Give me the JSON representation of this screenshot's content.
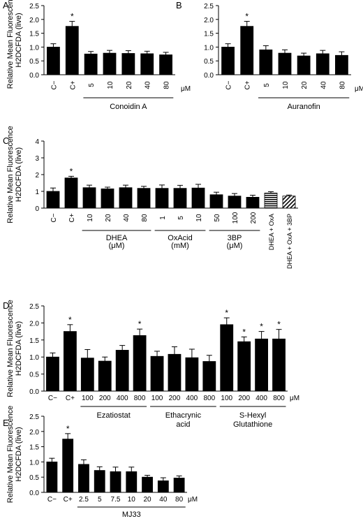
{
  "chart_data": [
    {
      "panel": "A",
      "type": "bar",
      "ylabel": [
        "Relative Mean Fluorescence",
        "H2DCFDA (live)"
      ],
      "ylim": [
        0,
        2.5
      ],
      "yticks": [
        "0.0",
        "0.5",
        "1.0",
        "1.5",
        "2.0",
        "2.5"
      ],
      "categories": [
        "C−",
        "C+",
        "5",
        "10",
        "20",
        "40",
        "80"
      ],
      "values": [
        1.0,
        1.75,
        0.75,
        0.78,
        0.77,
        0.76,
        0.72
      ],
      "errors": [
        0.12,
        0.18,
        0.09,
        0.1,
        0.1,
        0.09,
        0.09
      ],
      "significant": [
        false,
        true,
        false,
        false,
        false,
        false,
        false
      ],
      "unit": "μM",
      "groups": [
        {
          "label": "Conoidin A",
          "from": 2,
          "to": 6
        }
      ]
    },
    {
      "panel": "B",
      "type": "bar",
      "ylim": [
        0,
        2.5
      ],
      "yticks": [
        "0.0",
        "0.5",
        "1.0",
        "1.5",
        "2.0",
        "2.5"
      ],
      "categories": [
        "C−",
        "C+",
        "5",
        "10",
        "20",
        "40",
        "80"
      ],
      "values": [
        1.0,
        1.75,
        0.9,
        0.78,
        0.68,
        0.76,
        0.7
      ],
      "errors": [
        0.12,
        0.18,
        0.15,
        0.12,
        0.1,
        0.12,
        0.13
      ],
      "significant": [
        false,
        true,
        false,
        false,
        false,
        false,
        false
      ],
      "unit": "μM",
      "groups": [
        {
          "label": "Auranofin",
          "from": 2,
          "to": 6
        }
      ]
    },
    {
      "panel": "C",
      "type": "bar",
      "ylabel": [
        "Relative Mean Fluorescence",
        "H2DCFDA (live)"
      ],
      "ylim": [
        0,
        4
      ],
      "yticks": [
        "0",
        "1",
        "2",
        "3",
        "4"
      ],
      "categories": [
        "C−",
        "C+",
        "10",
        "20",
        "40",
        "80",
        "1",
        "5",
        "10",
        "50",
        "100",
        "200",
        "DHEA + OxA",
        "DHEA + OxA + 3BP"
      ],
      "values": [
        1.0,
        1.8,
        1.22,
        1.15,
        1.22,
        1.18,
        1.18,
        1.18,
        1.2,
        0.8,
        0.72,
        0.65,
        0.9,
        0.72
      ],
      "errors": [
        0.2,
        0.1,
        0.15,
        0.1,
        0.15,
        0.12,
        0.2,
        0.18,
        0.22,
        0.15,
        0.15,
        0.12,
        0.08,
        0.06
      ],
      "significant": [
        false,
        true,
        false,
        false,
        false,
        false,
        false,
        false,
        false,
        false,
        false,
        false,
        false,
        false
      ],
      "patterns": [
        "solid",
        "solid",
        "solid",
        "solid",
        "solid",
        "solid",
        "solid",
        "solid",
        "solid",
        "solid",
        "solid",
        "solid",
        "horizontal-stripes",
        "diagonal-hatch"
      ],
      "groups": [
        {
          "label": "DHEA",
          "sub": "(μM)",
          "from": 2,
          "to": 5
        },
        {
          "label": "OxAcid",
          "sub": "(mM)",
          "from": 6,
          "to": 8
        },
        {
          "label": "3BP",
          "sub": "(μM)",
          "from": 9,
          "to": 11
        }
      ]
    },
    {
      "panel": "D",
      "type": "bar",
      "ylabel": [
        "Relative Mean Fluorescence",
        "H2DCFDA (live)"
      ],
      "ylim": [
        0,
        2.5
      ],
      "yticks": [
        "0.0",
        "0.5",
        "1.0",
        "1.5",
        "2.0",
        "2.5"
      ],
      "categories": [
        "C−",
        "C+",
        "100",
        "200",
        "400",
        "800",
        "100",
        "200",
        "400",
        "800",
        "100",
        "200",
        "400",
        "800"
      ],
      "values": [
        1.0,
        1.75,
        0.97,
        0.88,
        1.2,
        1.63,
        1.02,
        1.08,
        0.98,
        0.87,
        1.95,
        1.45,
        1.53,
        1.53
      ],
      "errors": [
        0.12,
        0.2,
        0.25,
        0.12,
        0.14,
        0.19,
        0.15,
        0.22,
        0.25,
        0.18,
        0.2,
        0.14,
        0.22,
        0.28
      ],
      "significant": [
        false,
        true,
        false,
        false,
        false,
        true,
        false,
        false,
        false,
        false,
        true,
        true,
        true,
        true
      ],
      "unit": "μM",
      "groups": [
        {
          "label": "Ezatiostat",
          "from": 2,
          "to": 5
        },
        {
          "label": "Ethacrynic",
          "sub": "acid",
          "from": 6,
          "to": 9
        },
        {
          "label": "S-Hexyl",
          "sub": "Glutathione",
          "from": 10,
          "to": 13
        }
      ]
    },
    {
      "panel": "E",
      "type": "bar",
      "ylabel": [
        "Relative Mean Fluorescence",
        "H2DCFDA (live)"
      ],
      "ylim": [
        0,
        2.5
      ],
      "yticks": [
        "0.0",
        "0.5",
        "1.0",
        "1.5",
        "2.0",
        "2.5"
      ],
      "categories": [
        "C−",
        "C+",
        "2.5",
        "5",
        "7.5",
        "10",
        "20",
        "40",
        "80"
      ],
      "values": [
        1.0,
        1.75,
        0.92,
        0.72,
        0.68,
        0.68,
        0.5,
        0.38,
        0.47
      ],
      "errors": [
        0.12,
        0.18,
        0.15,
        0.12,
        0.15,
        0.15,
        0.06,
        0.1,
        0.07
      ],
      "significant": [
        false,
        true,
        false,
        false,
        false,
        false,
        false,
        false,
        false
      ],
      "unit": "μM",
      "groups": [
        {
          "label": "MJ33",
          "from": 2,
          "to": 8
        }
      ]
    }
  ]
}
